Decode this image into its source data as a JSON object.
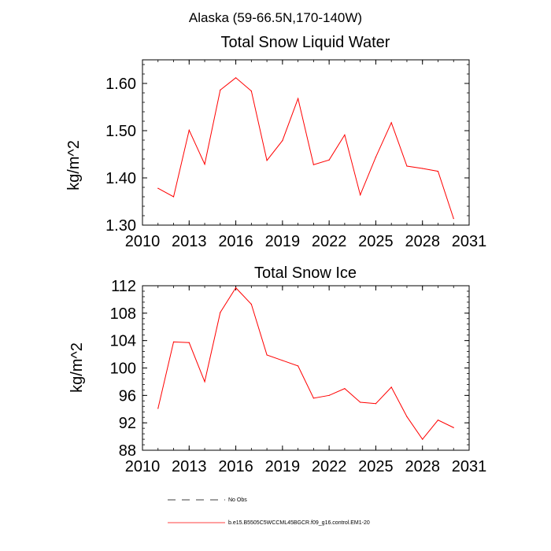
{
  "suptitle": "Alaska (59-66.5N,170-140W)",
  "colors": {
    "series": "#ff0000",
    "axis": "#000000"
  },
  "legend": {
    "entries": [
      {
        "label": "No Obs",
        "style": "dashed"
      },
      {
        "label": "b.e15.B5505C5WCCML45BGCR.f09_g16.control.EM1-20",
        "style": "solid"
      }
    ]
  },
  "chart_data": [
    {
      "type": "line",
      "title": "Total Snow Liquid Water",
      "xlabel": "",
      "ylabel": "kg/m^2",
      "xlim": [
        2010,
        2031
      ],
      "ylim": [
        1.3,
        1.65
      ],
      "xticks": [
        "2010",
        "2013",
        "2016",
        "2019",
        "2022",
        "2025",
        "2028",
        "2031"
      ],
      "yticks": [
        "1.30",
        "1.40",
        "1.50",
        "1.60"
      ],
      "x": [
        2011,
        2012,
        2013,
        2014,
        2015,
        2016,
        2017,
        2018,
        2019,
        2020,
        2021,
        2022,
        2023,
        2024,
        2025,
        2026,
        2027,
        2028,
        2029,
        2030
      ],
      "series": [
        {
          "values": [
            1.378,
            1.36,
            1.501,
            1.429,
            1.586,
            1.612,
            1.584,
            1.437,
            1.479,
            1.568,
            1.428,
            1.438,
            1.491,
            1.364,
            1.444,
            1.517,
            1.425,
            1.42,
            1.414,
            1.314
          ]
        }
      ]
    },
    {
      "type": "line",
      "title": "Total Snow Ice",
      "xlabel": "",
      "ylabel": "kg/m^2",
      "xlim": [
        2010,
        2031
      ],
      "ylim": [
        88,
        112
      ],
      "xticks": [
        "2010",
        "2013",
        "2016",
        "2019",
        "2022",
        "2025",
        "2028",
        "2031"
      ],
      "yticks": [
        "88",
        "92",
        "96",
        "100",
        "104",
        "108",
        "112"
      ],
      "x": [
        2011,
        2012,
        2013,
        2014,
        2015,
        2016,
        2017,
        2018,
        2019,
        2020,
        2021,
        2022,
        2023,
        2024,
        2025,
        2026,
        2027,
        2028,
        2029,
        2030
      ],
      "series": [
        {
          "values": [
            94.1,
            103.8,
            103.7,
            98.0,
            108.1,
            111.7,
            109.3,
            101.9,
            101.1,
            100.3,
            95.6,
            96.0,
            97.0,
            95.0,
            94.8,
            97.2,
            92.9,
            89.6,
            92.4,
            91.3
          ]
        }
      ]
    }
  ]
}
